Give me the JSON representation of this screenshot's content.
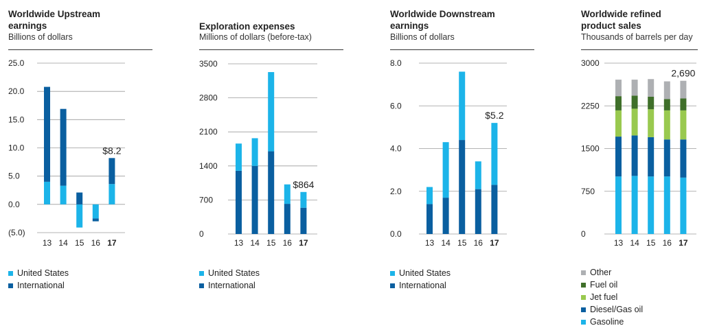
{
  "colors": {
    "us": "#1cb4e9",
    "intl": "#0a5fa0",
    "other": "#aeb0b3",
    "fuel_oil": "#3f6f2a",
    "jet_fuel": "#99c94f",
    "diesel": "#0a5fa0",
    "gasoline": "#1cb4e9"
  },
  "chart_data": [
    {
      "type": "bar",
      "stacked": true,
      "title": "Worldwide Upstream\nearnings",
      "subtitle": "Billions of dollars",
      "categories": [
        "13",
        "14",
        "15",
        "16",
        "17"
      ],
      "bold_category": "17",
      "yticks": [
        "25.0",
        "20.0",
        "15.0",
        "10.0",
        "5.0",
        "0.0",
        "(5.0)"
      ],
      "ylim": [
        -5,
        25
      ],
      "series": [
        {
          "name": "United States",
          "color_key": "us",
          "values": [
            4.0,
            3.3,
            -4.1,
            -2.5,
            3.6
          ]
        },
        {
          "name": "International",
          "color_key": "intl",
          "values": [
            16.8,
            13.6,
            2.1,
            -0.5,
            4.6
          ]
        }
      ],
      "annotation": {
        "text": "$8.2",
        "category": "17",
        "value": 8.2
      },
      "legend": [
        "United States",
        "International"
      ]
    },
    {
      "type": "bar",
      "stacked": true,
      "title": "Exploration expenses",
      "subtitle": "Millions of dollars (before-tax)",
      "categories": [
        "13",
        "14",
        "15",
        "16",
        "17"
      ],
      "bold_category": "17",
      "yticks": [
        "3500",
        "2800",
        "2100",
        "1400",
        "700",
        "0"
      ],
      "ylim": [
        0,
        3500
      ],
      "series": [
        {
          "name": "International",
          "color_key": "intl",
          "values": [
            1300,
            1400,
            1700,
            620,
            540
          ]
        },
        {
          "name": "United States",
          "color_key": "us",
          "values": [
            560,
            570,
            1630,
            400,
            324
          ]
        }
      ],
      "annotation": {
        "text": "$864",
        "category": "17",
        "value": 864
      },
      "legend": [
        "United States",
        "International"
      ]
    },
    {
      "type": "bar",
      "stacked": true,
      "title": "Worldwide Downstream\nearnings",
      "subtitle": "Billions of dollars",
      "categories": [
        "13",
        "14",
        "15",
        "16",
        "17"
      ],
      "bold_category": "17",
      "yticks": [
        "8.0",
        "6.0",
        "4.0",
        "2.0",
        "0.0"
      ],
      "ylim": [
        0,
        8
      ],
      "series": [
        {
          "name": "International",
          "color_key": "intl",
          "values": [
            1.4,
            1.7,
            4.4,
            2.1,
            2.3
          ]
        },
        {
          "name": "United States",
          "color_key": "us",
          "values": [
            0.8,
            2.6,
            3.2,
            1.3,
            2.9
          ]
        }
      ],
      "annotation": {
        "text": "$5.2",
        "category": "17",
        "value": 5.2
      },
      "legend": [
        "United States",
        "International"
      ]
    },
    {
      "type": "bar",
      "stacked": true,
      "title": "Worldwide refined\nproduct sales",
      "subtitle": "Thousands of barrels per day",
      "categories": [
        "13",
        "14",
        "15",
        "16",
        "17"
      ],
      "bold_category": "17",
      "yticks": [
        "3000",
        "2250",
        "1500",
        "750",
        "0"
      ],
      "ylim": [
        0,
        3000
      ],
      "series": [
        {
          "name": "Gasoline",
          "color_key": "gasoline",
          "values": [
            1010,
            1020,
            1010,
            1010,
            990
          ]
        },
        {
          "name": "Diesel/Gas oil",
          "color_key": "diesel",
          "values": [
            700,
            710,
            690,
            650,
            670
          ]
        },
        {
          "name": "Jet fuel",
          "color_key": "jet_fuel",
          "values": [
            460,
            470,
            490,
            510,
            510
          ]
        },
        {
          "name": "Fuel oil",
          "color_key": "fuel_oil",
          "values": [
            250,
            230,
            220,
            200,
            210
          ]
        },
        {
          "name": "Other",
          "color_key": "other",
          "values": [
            290,
            280,
            310,
            310,
            310
          ]
        }
      ],
      "annotation": {
        "text": "2,690",
        "category": "17",
        "value": 2690
      },
      "legend": [
        "Other",
        "Fuel oil",
        "Jet fuel",
        "Diesel/Gas oil",
        "Gasoline"
      ]
    }
  ]
}
